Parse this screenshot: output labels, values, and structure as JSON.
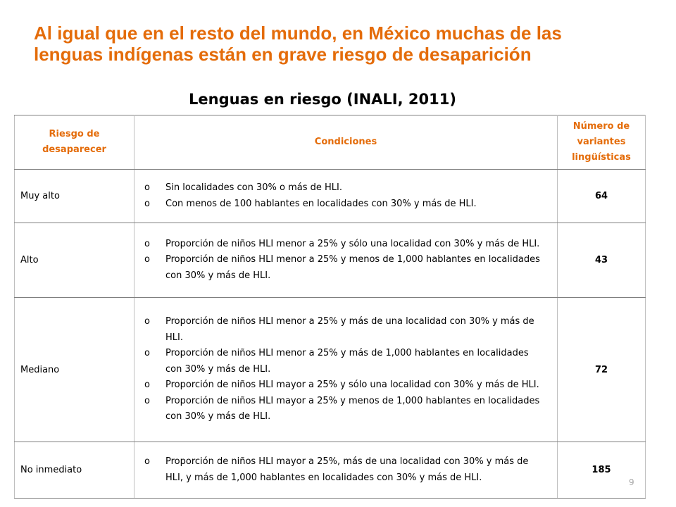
{
  "slide": {
    "title_line1": "Al igual que en el resto del mundo, en México muchas de las",
    "title_line2": "lenguas indígenas están en grave riesgo de desaparición",
    "page_number": "9",
    "accent_color": "#E46C0A"
  },
  "table": {
    "title": "Lenguas en riesgo (INALI, 2011)",
    "headers": {
      "risk": "Riesgo de desaparecer",
      "conditions": "Condiciones",
      "count": "Número de variantes lingüísticas"
    },
    "bullet": "o",
    "rows": [
      {
        "risk": "Muy alto",
        "conditions": [
          "Sin localidades con 30% o más de HLI.",
          "Con menos de 100 hablantes en localidades con 30% y más de HLI."
        ],
        "count": "64"
      },
      {
        "risk": "Alto",
        "conditions": [
          "Proporción de niños HLI menor a 25% y sólo una localidad con 30% y más de HLI.",
          "Proporción de niños HLI menor a 25% y menos de 1,000 hablantes en localidades con 30% y más de HLI."
        ],
        "count": "43"
      },
      {
        "risk": "Mediano",
        "conditions": [
          "Proporción de niños HLI menor a 25% y más de una localidad con 30% y más de HLI.",
          "Proporción de niños HLI menor a 25% y más de 1,000 hablantes en localidades con 30% y más de HLI.",
          "Proporción de niños HLI mayor a 25% y sólo una localidad con 30% y más de HLI.",
          "Proporción de niños HLI mayor a 25% y menos de 1,000 hablantes en localidades con 30% y más de HLI."
        ],
        "count": "72"
      },
      {
        "risk": "No inmediato",
        "conditions": [
          "Proporción de niños HLI mayor a 25%, más de una localidad con 30% y más de HLI, y más de 1,000 hablantes en localidades con 30% y más de HLI."
        ],
        "count": "185"
      }
    ]
  }
}
